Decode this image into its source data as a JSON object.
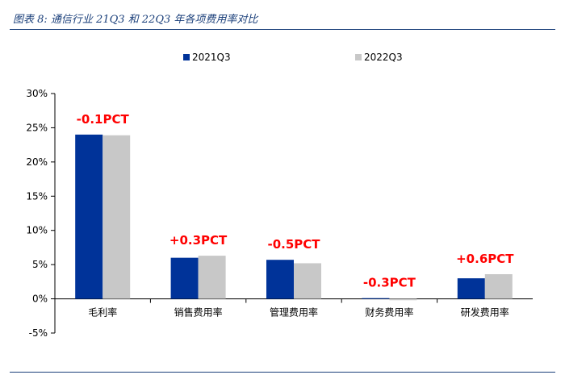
{
  "title": "图表 8:  通信行业 21Q3 和 22Q3 年各项费用率对比",
  "chart_data": {
    "type": "bar",
    "categories": [
      "毛利率",
      "销售费用率",
      "管理费用率",
      "财务费用率",
      "研发费用率"
    ],
    "series": [
      {
        "name": "2021Q3",
        "values": [
          24.0,
          6.0,
          5.7,
          0.1,
          3.0
        ],
        "color": "#003399"
      },
      {
        "name": "2022Q3",
        "values": [
          23.9,
          6.3,
          5.2,
          -0.2,
          3.6
        ],
        "color": "#c8c8c8"
      }
    ],
    "ylim": [
      -5,
      30
    ],
    "yticks": [
      -5,
      0,
      5,
      10,
      15,
      20,
      25,
      30
    ],
    "ytick_labels": [
      "-5%",
      "0%",
      "5%",
      "10%",
      "15%",
      "20%",
      "25%",
      "30%"
    ],
    "annotations": [
      "-0.1PCT",
      "+0.3PCT",
      "-0.5PCT",
      "-0.3PCT",
      "+0.6PCT"
    ],
    "legend_position": "top-center",
    "grid": false
  }
}
